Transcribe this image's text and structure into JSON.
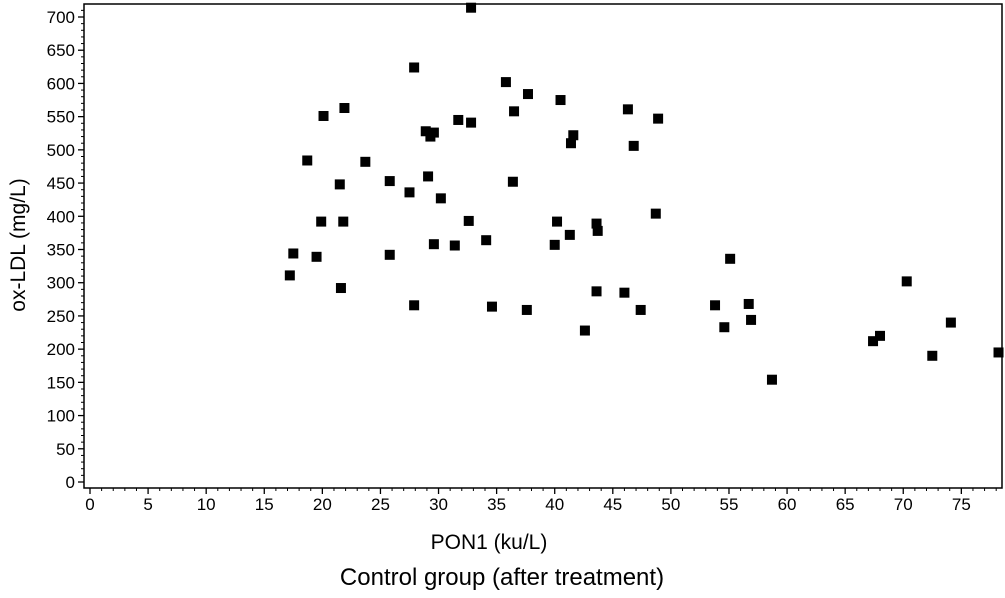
{
  "chart_data": {
    "type": "scatter",
    "title": "",
    "caption": "Control group (after treatment)",
    "xlabel": "PON1 (ku/L)",
    "ylabel": "ox-LDL (mg/L)",
    "xlim": [
      0,
      78.5
    ],
    "ylim": [
      0,
      720
    ],
    "x_ticks": [
      0,
      5,
      10,
      15,
      20,
      25,
      30,
      35,
      40,
      45,
      50,
      55,
      60,
      65,
      70,
      75
    ],
    "y_ticks": [
      0,
      50,
      100,
      150,
      200,
      250,
      300,
      350,
      400,
      450,
      500,
      550,
      600,
      650,
      700
    ],
    "marker": "square",
    "marker_color": "#000000",
    "grid": false,
    "series": [
      {
        "points": [
          [
            17.2,
            311
          ],
          [
            17.5,
            344
          ],
          [
            18.7,
            484
          ],
          [
            19.5,
            339
          ],
          [
            19.9,
            392
          ],
          [
            20.1,
            551
          ],
          [
            21.5,
            448
          ],
          [
            21.6,
            292
          ],
          [
            21.8,
            392
          ],
          [
            21.9,
            563
          ],
          [
            23.7,
            482
          ],
          [
            25.8,
            342
          ],
          [
            25.8,
            453
          ],
          [
            27.5,
            436
          ],
          [
            27.9,
            266
          ],
          [
            27.9,
            624
          ],
          [
            28.9,
            528
          ],
          [
            29.1,
            460
          ],
          [
            29.3,
            520
          ],
          [
            29.6,
            526
          ],
          [
            29.6,
            358
          ],
          [
            30.2,
            427
          ],
          [
            31.4,
            356
          ],
          [
            31.7,
            545
          ],
          [
            32.6,
            393
          ],
          [
            32.8,
            541
          ],
          [
            32.8,
            714
          ],
          [
            34.1,
            364
          ],
          [
            34.6,
            264
          ],
          [
            35.8,
            602
          ],
          [
            36.4,
            452
          ],
          [
            36.5,
            558
          ],
          [
            37.6,
            259
          ],
          [
            37.7,
            584
          ],
          [
            40.0,
            357
          ],
          [
            40.2,
            392
          ],
          [
            40.5,
            575
          ],
          [
            41.3,
            372
          ],
          [
            41.4,
            510
          ],
          [
            41.6,
            522
          ],
          [
            42.6,
            228
          ],
          [
            43.6,
            389
          ],
          [
            43.6,
            287
          ],
          [
            43.7,
            378
          ],
          [
            46.0,
            285
          ],
          [
            46.3,
            561
          ],
          [
            46.8,
            506
          ],
          [
            47.4,
            259
          ],
          [
            48.7,
            404
          ],
          [
            48.9,
            547
          ],
          [
            53.8,
            266
          ],
          [
            54.6,
            233
          ],
          [
            55.1,
            336
          ],
          [
            56.7,
            268
          ],
          [
            56.9,
            244
          ],
          [
            58.7,
            154
          ],
          [
            67.4,
            212
          ],
          [
            68.0,
            220
          ],
          [
            70.3,
            302
          ],
          [
            72.5,
            190
          ],
          [
            74.1,
            240
          ],
          [
            78.2,
            195
          ]
        ]
      }
    ]
  }
}
